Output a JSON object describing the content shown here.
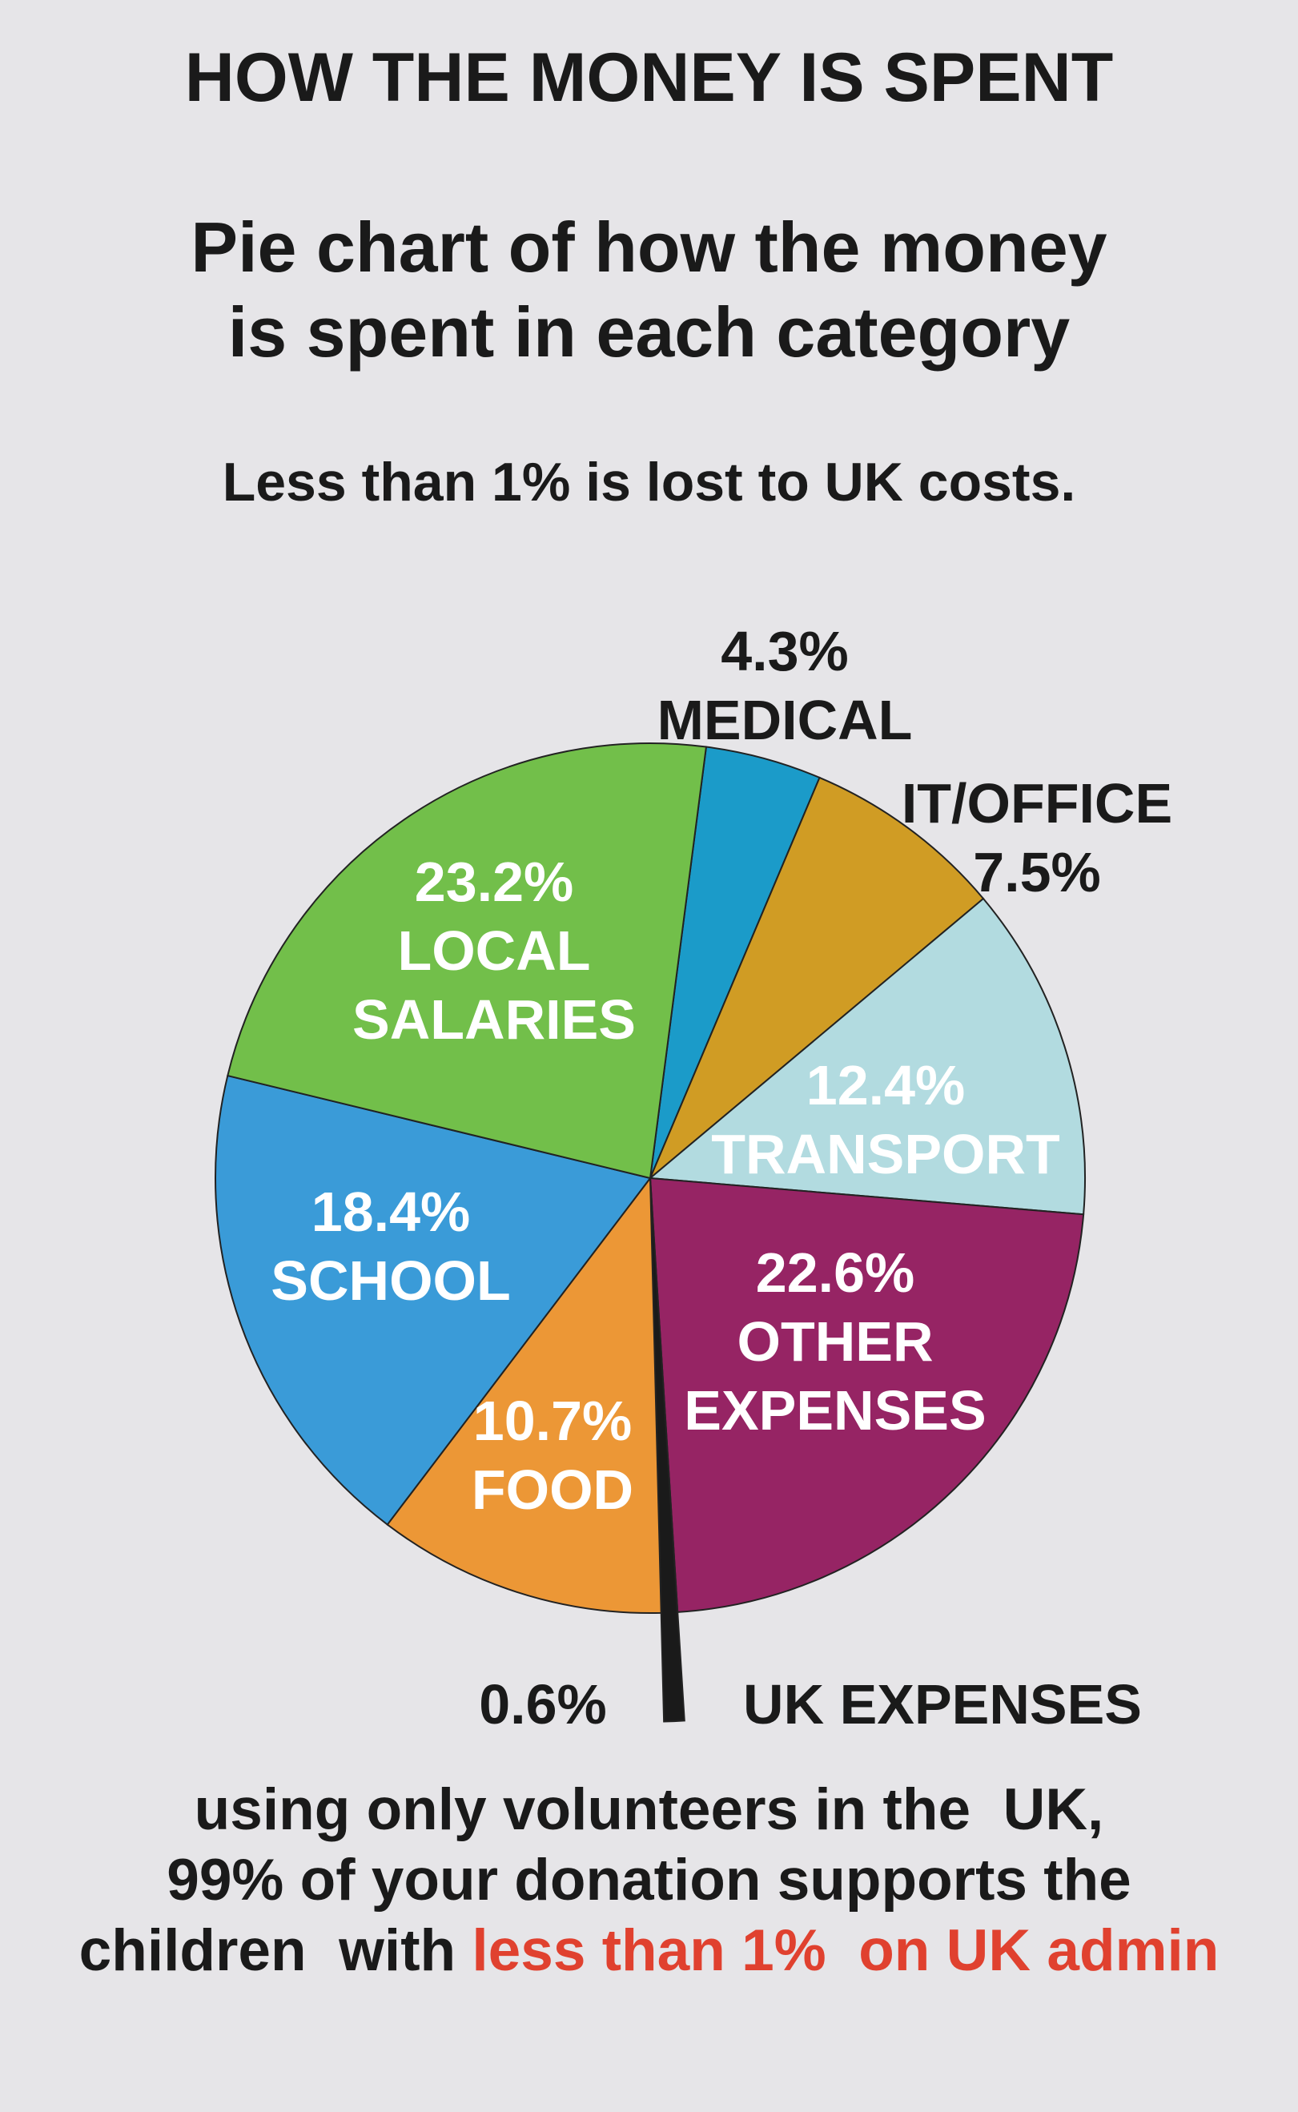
{
  "chart_data": {
    "type": "pie",
    "title": "HOW THE MONEY IS SPENT",
    "subtitle": [
      "Pie chart of how the money",
      "is spent in each category"
    ],
    "note": "Less than 1% is lost to UK costs.",
    "categories": [
      "MEDICAL",
      "IT/OFFICE",
      "TRANSPORT",
      "OTHER EXPENSES",
      "UK EXPENSES",
      "FOOD",
      "SCHOOL",
      "LOCAL SALARIES"
    ],
    "values": [
      4.3,
      7.5,
      12.4,
      22.6,
      0.6,
      10.7,
      18.4,
      23.2
    ],
    "value_labels": [
      "4.3%",
      "7.5%",
      "12.4%",
      "22.6%",
      "0.6%",
      "10.7%",
      "18.4%",
      "23.2%"
    ],
    "colors": [
      "#1b9bc9",
      "#d09c24",
      "#b2dbe0",
      "#962464",
      "#1a1a1a",
      "#ec9736",
      "#3a9bd8",
      "#72bf4a"
    ]
  },
  "footer": {
    "lines": [
      "using only volunteers in the  UK,",
      "99% of your donation supports the",
      "children  with "
    ],
    "highlight": "less than 1%  on UK admin"
  }
}
